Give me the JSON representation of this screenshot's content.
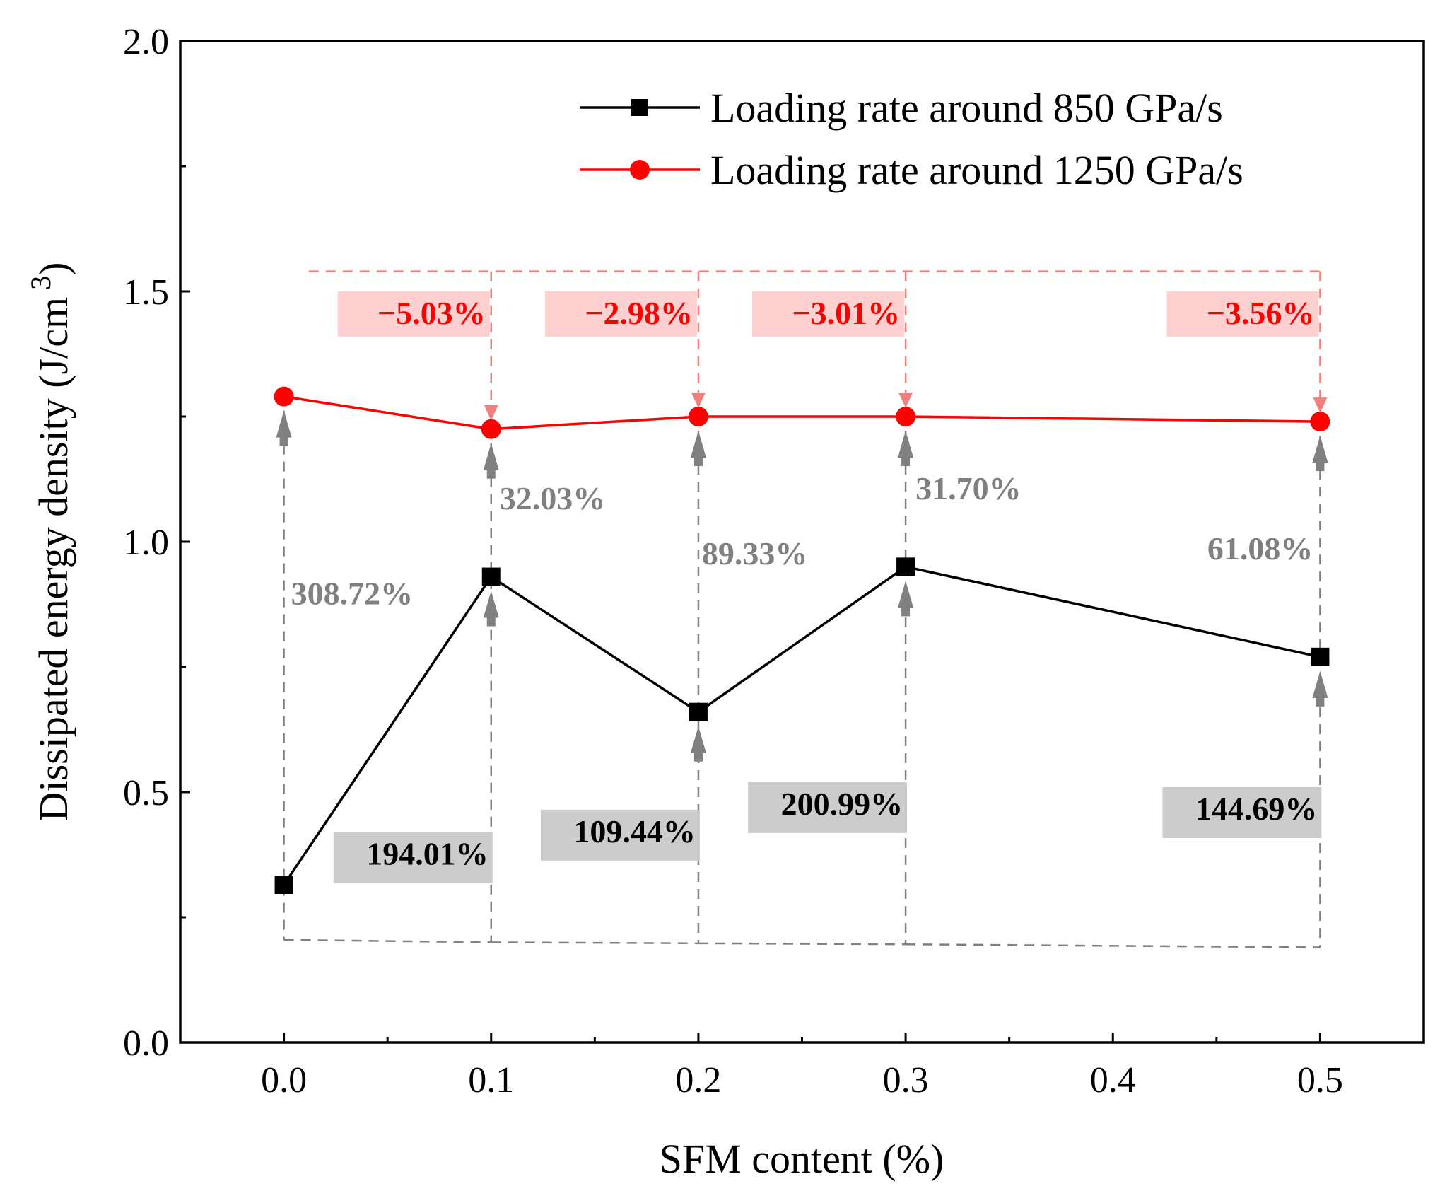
{
  "chart_data": {
    "type": "line",
    "xlabel": "SFM content (%)",
    "ylabel": "Dissipated energy density (J/cm",
    "ylabel_superscript": "3",
    "ylabel_close": ")",
    "xlim": [
      -0.05,
      0.55
    ],
    "ylim": [
      0.0,
      2.0
    ],
    "x_ticks": [
      "0.0",
      "0.1",
      "0.2",
      "0.3",
      "0.4",
      "0.5"
    ],
    "y_ticks": [
      "0.0",
      "0.5",
      "1.0",
      "1.5",
      "2.0"
    ],
    "x": [
      0.0,
      0.1,
      0.2,
      0.3,
      0.5
    ],
    "series": [
      {
        "name": "Loading rate around 850 GPa/s",
        "color": "#000000",
        "marker": "square",
        "values": [
          0.315,
          0.93,
          0.66,
          0.95,
          0.77
        ]
      },
      {
        "name": "Loading rate around 1250 GPa/s",
        "color": "#ff0000",
        "marker": "circle",
        "values": [
          1.29,
          1.225,
          1.25,
          1.25,
          1.24
        ]
      }
    ],
    "annotations": {
      "red_change": [
        {
          "text": "−5.03%",
          "x": 0.1
        },
        {
          "text": "−2.98%",
          "x": 0.2
        },
        {
          "text": "−3.01%",
          "x": 0.3
        },
        {
          "text": "−3.56%",
          "x": 0.5
        }
      ],
      "gap_change": [
        {
          "text": "308.72%",
          "x": 0.0
        },
        {
          "text": "32.03%",
          "x": 0.1
        },
        {
          "text": "89.33%",
          "x": 0.2
        },
        {
          "text": "31.70%",
          "x": 0.3
        },
        {
          "text": "61.08%",
          "x": 0.5
        }
      ],
      "black_change": [
        {
          "text": "194.01%",
          "x": 0.1
        },
        {
          "text": "109.44%",
          "x": 0.2
        },
        {
          "text": "200.99%",
          "x": 0.3
        },
        {
          "text": "144.69%",
          "x": 0.5
        }
      ]
    },
    "colors": {
      "red_label_bg": "#ffd0d0",
      "gray_label_bg": "#cccccc",
      "red_dash": "#f08080",
      "gray_dash": "#808080",
      "gray_arrow": "#808080",
      "red_arrow": "#f08080"
    }
  }
}
